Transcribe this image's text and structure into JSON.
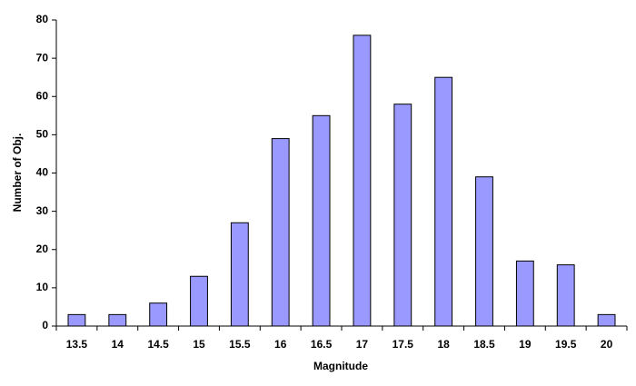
{
  "chart_data": {
    "type": "bar",
    "categories": [
      "13.5",
      "14",
      "14.5",
      "15",
      "15.5",
      "16",
      "16.5",
      "17",
      "17.5",
      "18",
      "18.5",
      "19",
      "19.5",
      "20"
    ],
    "values": [
      3,
      3,
      6,
      13,
      27,
      49,
      55,
      76,
      58,
      65,
      39,
      17,
      16,
      3
    ],
    "color": "#9999ff",
    "x_label": "Magnitude",
    "y_label": "Number of Obj.",
    "ylim": [
      0,
      80
    ],
    "yticks": [
      0,
      10,
      20,
      30,
      40,
      50,
      60,
      70,
      80
    ],
    "grid": false
  }
}
